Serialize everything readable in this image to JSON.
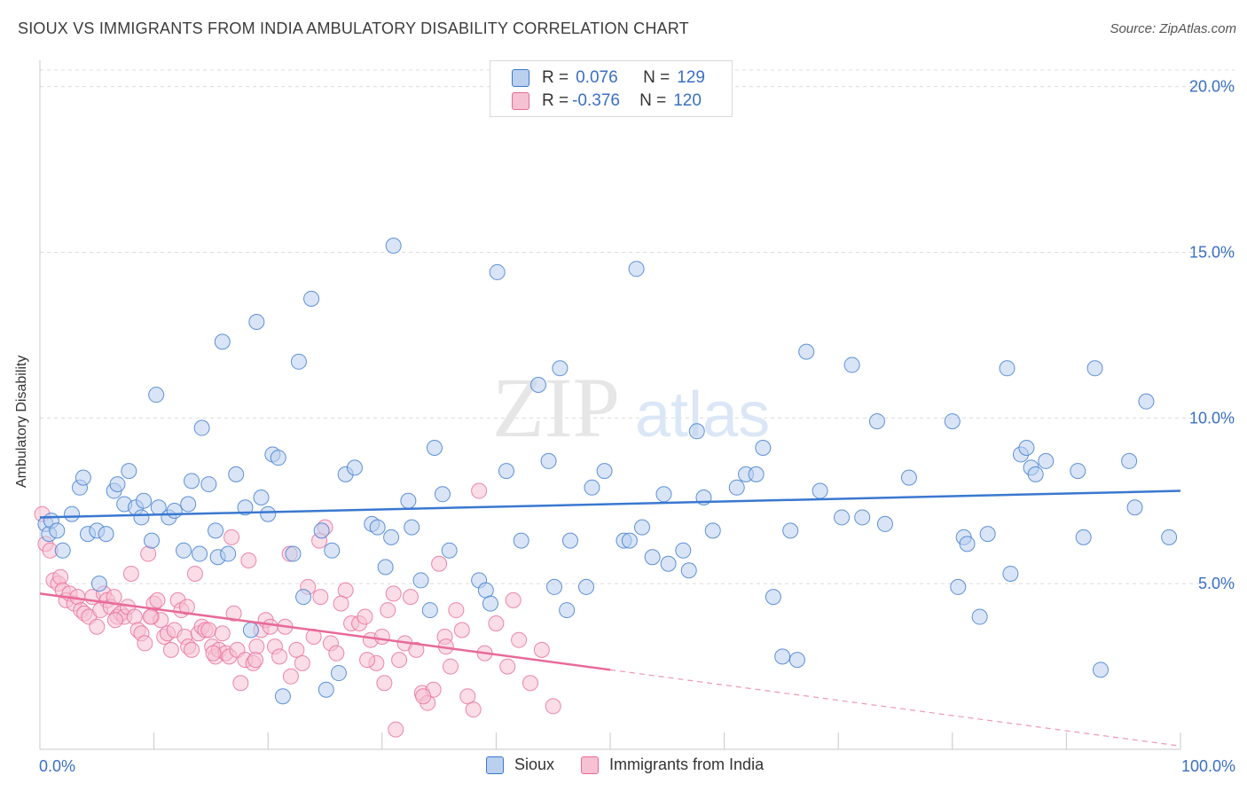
{
  "title": "SIOUX VS IMMIGRANTS FROM INDIA AMBULATORY DISABILITY CORRELATION CHART",
  "source": "Source: ZipAtlas.com",
  "watermark": {
    "zip": "ZIP",
    "atlas": "atlas"
  },
  "colors": {
    "sioux": "#3a78d0",
    "india": "#e86a99",
    "sioux_fill": "#b9d0ef",
    "india_fill": "#f6c1d3",
    "tick_label": "#3a6fc4"
  },
  "legend": {
    "rows": [
      {
        "r_label": "R =",
        "r_value": "0.076",
        "n_label": "N =",
        "n_value": "129"
      },
      {
        "r_label": "R =",
        "r_value": "-0.376",
        "n_label": "N =",
        "n_value": "120"
      }
    ]
  },
  "bottom_legend": {
    "series1": "Sioux",
    "series2": "Immigrants from India"
  },
  "chart_data": {
    "type": "scatter",
    "title": "SIOUX VS IMMIGRANTS FROM INDIA AMBULATORY DISABILITY CORRELATION CHART",
    "xlabel": "",
    "ylabel": "Ambulatory Disability",
    "xlim": [
      0,
      100
    ],
    "ylim": [
      0,
      20.5
    ],
    "x_tick_labels": [
      "0.0%",
      "100.0%"
    ],
    "y_ticks": [
      5,
      10,
      15,
      20
    ],
    "y_tick_labels": [
      "5.0%",
      "10.0%",
      "15.0%",
      "20.0%"
    ],
    "grid": true,
    "legend_position": "top-center",
    "series": [
      {
        "name": "Sioux",
        "r": 0.076,
        "n": 129,
        "trend": {
          "x": [
            0,
            100
          ],
          "y": [
            7.0,
            7.8
          ]
        },
        "points": [
          [
            0.5,
            6.8
          ],
          [
            0.8,
            6.5
          ],
          [
            1.0,
            6.9
          ],
          [
            1.5,
            6.6
          ],
          [
            2.0,
            6.0
          ],
          [
            2.8,
            7.1
          ],
          [
            3.5,
            7.9
          ],
          [
            3.8,
            8.2
          ],
          [
            4.2,
            6.5
          ],
          [
            5.0,
            6.6
          ],
          [
            5.2,
            5.0
          ],
          [
            5.8,
            6.5
          ],
          [
            6.5,
            7.8
          ],
          [
            6.8,
            8.0
          ],
          [
            7.4,
            7.4
          ],
          [
            7.8,
            8.4
          ],
          [
            8.4,
            7.3
          ],
          [
            8.9,
            7.0
          ],
          [
            9.1,
            7.5
          ],
          [
            9.8,
            6.3
          ],
          [
            10.2,
            10.7
          ],
          [
            10.4,
            7.3
          ],
          [
            11.3,
            7.0
          ],
          [
            11.8,
            7.2
          ],
          [
            12.6,
            6.0
          ],
          [
            13.0,
            7.4
          ],
          [
            13.3,
            8.1
          ],
          [
            14.0,
            5.9
          ],
          [
            14.2,
            9.7
          ],
          [
            14.8,
            8.0
          ],
          [
            15.4,
            6.6
          ],
          [
            15.6,
            5.8
          ],
          [
            16.0,
            12.3
          ],
          [
            16.5,
            5.9
          ],
          [
            17.2,
            8.3
          ],
          [
            18.0,
            7.3
          ],
          [
            18.5,
            3.6
          ],
          [
            19.0,
            12.9
          ],
          [
            19.4,
            7.6
          ],
          [
            20.0,
            7.1
          ],
          [
            20.4,
            8.9
          ],
          [
            20.9,
            8.8
          ],
          [
            21.3,
            1.6
          ],
          [
            22.2,
            5.9
          ],
          [
            22.7,
            11.7
          ],
          [
            23.1,
            4.6
          ],
          [
            23.8,
            13.6
          ],
          [
            24.7,
            6.6
          ],
          [
            25.1,
            1.8
          ],
          [
            25.6,
            6.0
          ],
          [
            26.2,
            2.3
          ],
          [
            26.8,
            8.3
          ],
          [
            27.6,
            8.5
          ],
          [
            29.1,
            6.8
          ],
          [
            29.6,
            6.7
          ],
          [
            30.3,
            5.5
          ],
          [
            30.8,
            6.4
          ],
          [
            31.0,
            15.2
          ],
          [
            32.3,
            7.5
          ],
          [
            32.6,
            6.7
          ],
          [
            33.4,
            5.1
          ],
          [
            34.2,
            4.2
          ],
          [
            34.6,
            9.1
          ],
          [
            35.3,
            7.7
          ],
          [
            35.9,
            6.0
          ],
          [
            38.5,
            5.1
          ],
          [
            39.1,
            4.8
          ],
          [
            39.5,
            4.4
          ],
          [
            40.1,
            14.4
          ],
          [
            40.9,
            8.4
          ],
          [
            42.2,
            6.3
          ],
          [
            43.7,
            11.0
          ],
          [
            44.6,
            8.7
          ],
          [
            45.1,
            4.9
          ],
          [
            45.6,
            11.5
          ],
          [
            46.2,
            4.2
          ],
          [
            46.5,
            6.3
          ],
          [
            47.9,
            4.9
          ],
          [
            48.4,
            7.9
          ],
          [
            49.5,
            8.4
          ],
          [
            51.2,
            6.3
          ],
          [
            51.7,
            6.3
          ],
          [
            52.3,
            14.5
          ],
          [
            52.8,
            6.7
          ],
          [
            53.7,
            5.8
          ],
          [
            54.7,
            7.7
          ],
          [
            55.1,
            5.6
          ],
          [
            56.4,
            6.0
          ],
          [
            56.9,
            5.4
          ],
          [
            57.6,
            9.6
          ],
          [
            58.2,
            7.6
          ],
          [
            59.0,
            6.6
          ],
          [
            61.1,
            7.9
          ],
          [
            61.9,
            8.3
          ],
          [
            62.8,
            8.3
          ],
          [
            63.4,
            9.1
          ],
          [
            64.3,
            4.6
          ],
          [
            65.1,
            2.8
          ],
          [
            65.8,
            6.6
          ],
          [
            66.4,
            2.7
          ],
          [
            67.2,
            12.0
          ],
          [
            68.4,
            7.8
          ],
          [
            70.3,
            7.0
          ],
          [
            71.2,
            11.6
          ],
          [
            72.1,
            7.0
          ],
          [
            73.4,
            9.9
          ],
          [
            74.1,
            6.8
          ],
          [
            76.2,
            8.2
          ],
          [
            80.0,
            9.9
          ],
          [
            80.5,
            4.9
          ],
          [
            81.0,
            6.4
          ],
          [
            81.3,
            6.2
          ],
          [
            82.4,
            4.0
          ],
          [
            83.1,
            6.5
          ],
          [
            84.8,
            11.5
          ],
          [
            85.1,
            5.3
          ],
          [
            86.0,
            8.9
          ],
          [
            86.5,
            9.1
          ],
          [
            86.9,
            8.5
          ],
          [
            87.3,
            8.3
          ],
          [
            88.2,
            8.7
          ],
          [
            91.0,
            8.4
          ],
          [
            91.5,
            6.4
          ],
          [
            92.5,
            11.5
          ],
          [
            93.0,
            2.4
          ],
          [
            95.5,
            8.7
          ],
          [
            96.0,
            7.3
          ],
          [
            97.0,
            10.5
          ],
          [
            99.0,
            6.4
          ]
        ]
      },
      {
        "name": "Immigrants from India",
        "r": -0.376,
        "n": 120,
        "trend": {
          "x": [
            0,
            50
          ],
          "y": [
            4.7,
            2.4
          ]
        },
        "trend_dashed": {
          "x": [
            50,
            100
          ],
          "y": [
            2.4,
            0.1
          ]
        },
        "points": [
          [
            0.2,
            7.1
          ],
          [
            0.5,
            6.2
          ],
          [
            0.9,
            6.0
          ],
          [
            1.2,
            5.1
          ],
          [
            1.6,
            5.0
          ],
          [
            1.8,
            5.2
          ],
          [
            2.0,
            4.8
          ],
          [
            2.3,
            4.5
          ],
          [
            2.6,
            4.7
          ],
          [
            3.0,
            4.4
          ],
          [
            3.3,
            4.6
          ],
          [
            3.6,
            4.2
          ],
          [
            3.9,
            4.1
          ],
          [
            4.3,
            4.0
          ],
          [
            4.6,
            4.6
          ],
          [
            5.0,
            3.7
          ],
          [
            5.3,
            4.2
          ],
          [
            5.6,
            4.7
          ],
          [
            5.9,
            4.5
          ],
          [
            6.2,
            4.3
          ],
          [
            6.5,
            4.6
          ],
          [
            6.8,
            4.0
          ],
          [
            7.1,
            4.1
          ],
          [
            7.4,
            4.0
          ],
          [
            7.7,
            4.3
          ],
          [
            8.0,
            5.3
          ],
          [
            8.3,
            4.0
          ],
          [
            8.6,
            3.6
          ],
          [
            8.9,
            3.5
          ],
          [
            9.2,
            3.2
          ],
          [
            9.5,
            5.9
          ],
          [
            9.8,
            4.0
          ],
          [
            10.0,
            4.4
          ],
          [
            10.3,
            4.5
          ],
          [
            10.6,
            3.9
          ],
          [
            10.9,
            3.4
          ],
          [
            11.2,
            3.5
          ],
          [
            11.5,
            3.0
          ],
          [
            11.8,
            3.6
          ],
          [
            12.1,
            4.5
          ],
          [
            12.4,
            4.2
          ],
          [
            12.7,
            3.4
          ],
          [
            13.0,
            3.1
          ],
          [
            13.3,
            3.0
          ],
          [
            13.6,
            5.3
          ],
          [
            13.9,
            3.5
          ],
          [
            14.2,
            3.7
          ],
          [
            14.5,
            3.6
          ],
          [
            14.8,
            3.6
          ],
          [
            15.1,
            3.1
          ],
          [
            15.4,
            2.8
          ],
          [
            15.7,
            3.0
          ],
          [
            16.0,
            3.5
          ],
          [
            16.3,
            2.9
          ],
          [
            16.6,
            2.8
          ],
          [
            17.0,
            4.1
          ],
          [
            17.3,
            3.0
          ],
          [
            17.6,
            2.0
          ],
          [
            18.0,
            2.7
          ],
          [
            18.3,
            5.7
          ],
          [
            18.7,
            2.6
          ],
          [
            19.0,
            3.1
          ],
          [
            19.4,
            3.6
          ],
          [
            19.8,
            3.9
          ],
          [
            20.2,
            3.7
          ],
          [
            20.6,
            3.1
          ],
          [
            21.0,
            2.8
          ],
          [
            21.5,
            3.7
          ],
          [
            22.0,
            2.2
          ],
          [
            22.5,
            3.0
          ],
          [
            23.0,
            2.6
          ],
          [
            23.5,
            4.9
          ],
          [
            24.0,
            3.4
          ],
          [
            24.5,
            6.3
          ],
          [
            25.0,
            6.7
          ],
          [
            25.5,
            3.2
          ],
          [
            26.0,
            2.9
          ],
          [
            26.8,
            4.8
          ],
          [
            27.3,
            3.8
          ],
          [
            28.0,
            3.8
          ],
          [
            28.5,
            4.0
          ],
          [
            29.0,
            3.3
          ],
          [
            29.5,
            2.6
          ],
          [
            30.0,
            3.4
          ],
          [
            30.5,
            4.2
          ],
          [
            31.0,
            4.7
          ],
          [
            31.5,
            2.7
          ],
          [
            32.0,
            3.2
          ],
          [
            32.5,
            4.6
          ],
          [
            33.0,
            3.0
          ],
          [
            33.5,
            1.7
          ],
          [
            34.0,
            1.4
          ],
          [
            34.5,
            1.8
          ],
          [
            35.0,
            5.6
          ],
          [
            35.5,
            3.4
          ],
          [
            36.0,
            2.5
          ],
          [
            36.5,
            4.2
          ],
          [
            37.0,
            3.6
          ],
          [
            37.5,
            1.6
          ],
          [
            38.0,
            1.2
          ],
          [
            38.5,
            7.8
          ],
          [
            39.0,
            2.9
          ],
          [
            40.0,
            3.8
          ],
          [
            41.0,
            2.5
          ],
          [
            41.5,
            4.5
          ],
          [
            42.0,
            3.3
          ],
          [
            43.0,
            2.0
          ],
          [
            44.0,
            3.0
          ],
          [
            45.0,
            1.3
          ],
          [
            31.2,
            0.6
          ],
          [
            33.6,
            1.6
          ],
          [
            30.2,
            2.0
          ],
          [
            24.6,
            4.6
          ],
          [
            16.8,
            6.4
          ],
          [
            9.7,
            4.0
          ],
          [
            6.6,
            3.9
          ],
          [
            12.9,
            4.3
          ],
          [
            21.9,
            5.9
          ],
          [
            26.4,
            4.4
          ],
          [
            28.7,
            2.7
          ],
          [
            35.6,
            3.1
          ],
          [
            18.9,
            2.7
          ],
          [
            15.2,
            2.9
          ]
        ]
      }
    ]
  }
}
